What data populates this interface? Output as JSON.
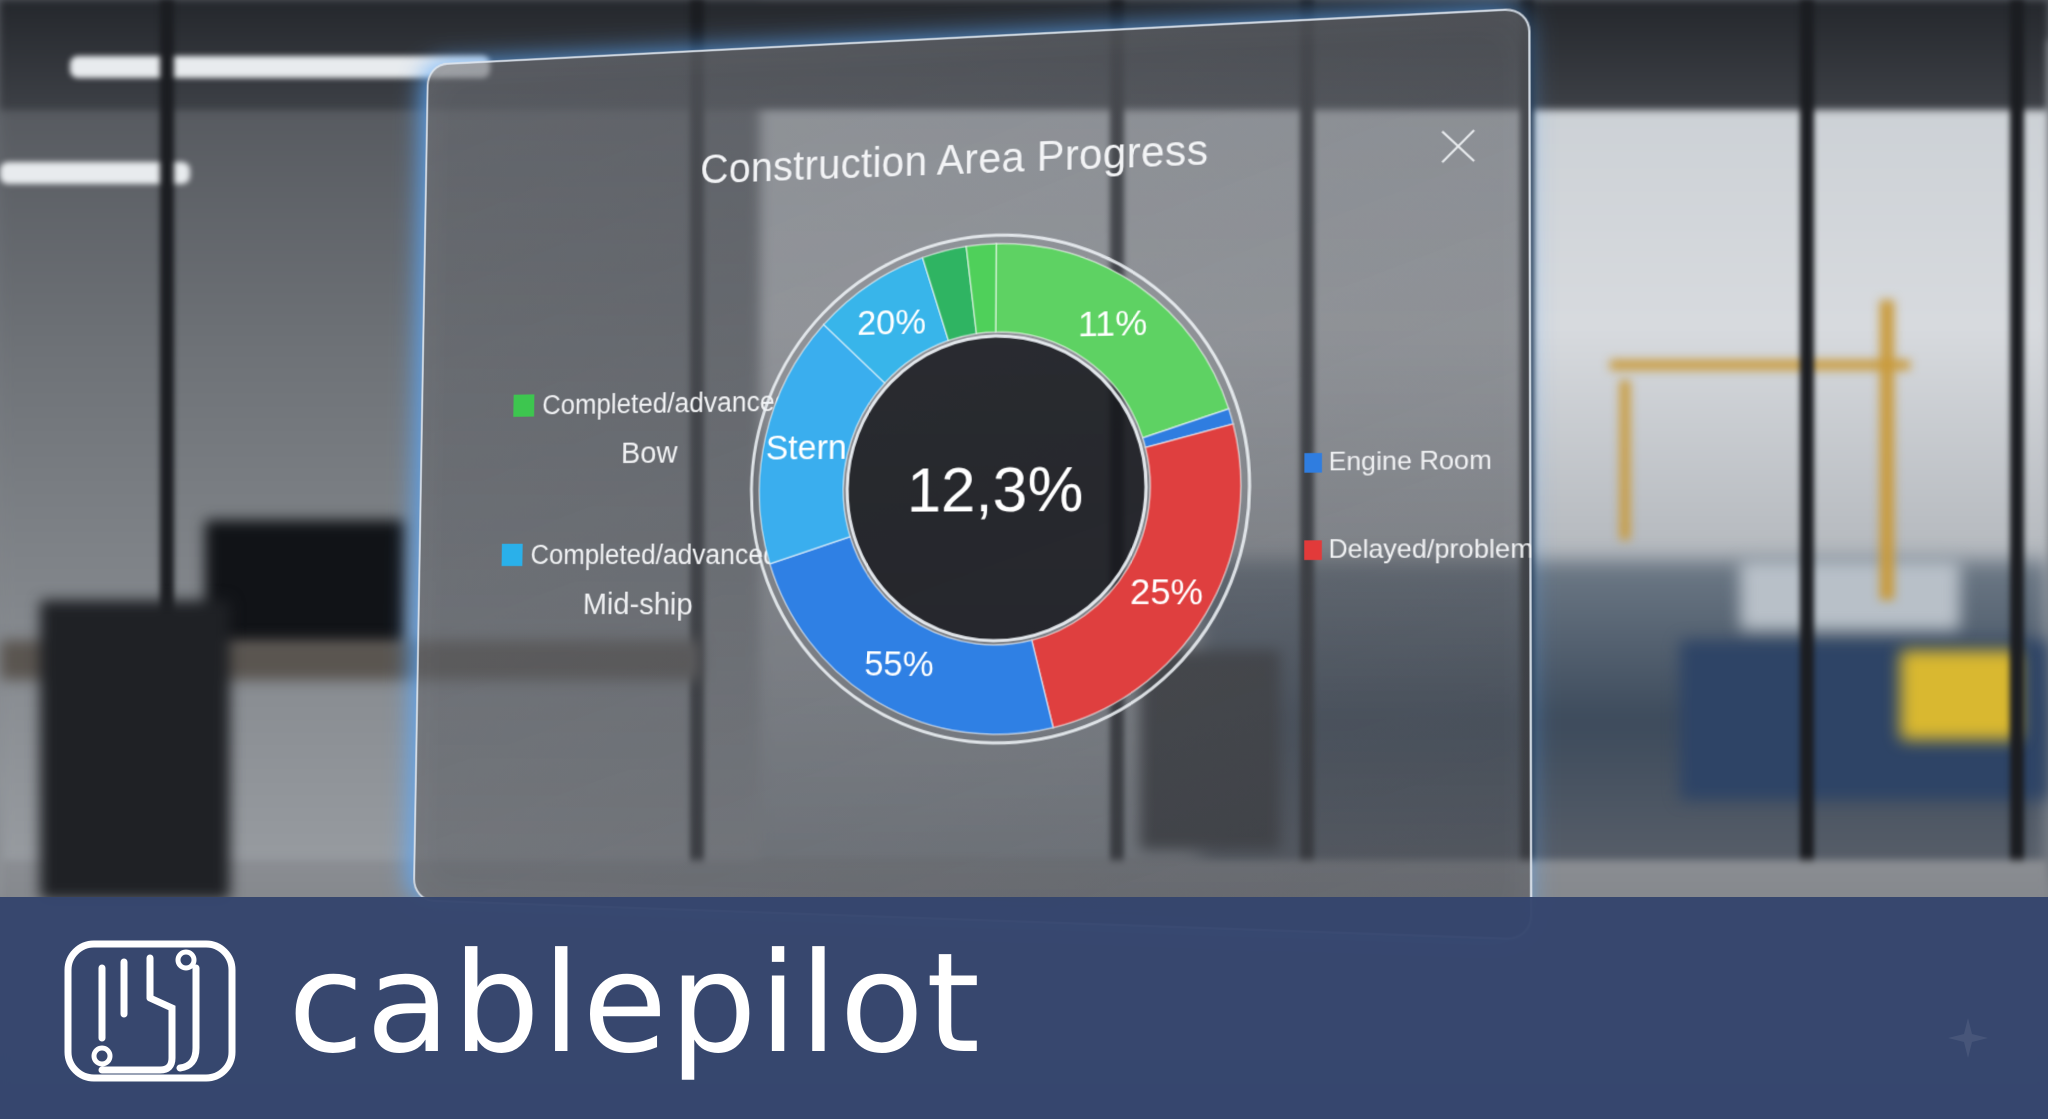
{
  "panel": {
    "title": "Construction Area Progress",
    "center_value": "12,3%",
    "legend_left": [
      {
        "label": "Completed/advanced",
        "sub": "Bow",
        "color": "#3dc64f"
      },
      {
        "label": "Completed/advanced",
        "sub": "Mid-ship",
        "color": "#2ab0ea"
      }
    ],
    "legend_right": [
      {
        "label": "Engine Room",
        "color": "#2f7de0"
      },
      {
        "label": "Delayed/problem",
        "color": "#e23a3a"
      }
    ]
  },
  "chart_data": {
    "type": "pie",
    "title": "Construction Area Progress",
    "center_label": "12,3%",
    "slice_labels": [
      "11%",
      "25%",
      "55%",
      "Stern",
      "20%"
    ],
    "segments": [
      {
        "name": "Bow (green)",
        "value": 20,
        "color": "#5ed263",
        "label": "11%"
      },
      {
        "name": "Engine Room sliver",
        "value": 1,
        "color": "#2f7de0",
        "label": ""
      },
      {
        "name": "Delayed/problem",
        "value": 25,
        "color": "#df3f3f",
        "label": "25%"
      },
      {
        "name": "Engine Room",
        "value": 24,
        "color": "#2f80e4",
        "label": "55%"
      },
      {
        "name": "Stern",
        "value": 17,
        "color": "#3aaeee",
        "label": "Stern"
      },
      {
        "name": "Mid-ship",
        "value": 8,
        "color": "#38b5ea",
        "label": "20%"
      },
      {
        "name": "Bow dark green",
        "value": 3,
        "color": "#2fb462",
        "label": ""
      },
      {
        "name": "Bow light green",
        "value": 2,
        "color": "#4fd05a",
        "label": ""
      }
    ]
  },
  "brand": {
    "name": "cablepilot",
    "bar_color": "#35456d"
  }
}
